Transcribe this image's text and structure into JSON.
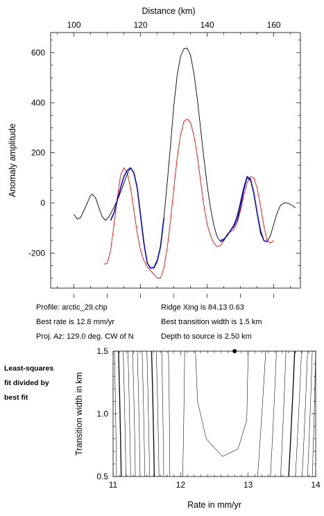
{
  "info": {
    "profile": "Profile: arctic_29.chp",
    "best_rate": "Best rate is 12.8 mm/yr",
    "proj_az": "Proj. Az: 129.0 deg. CW of N",
    "ridge_xing": "Ridge Xing is 84.13 0.63",
    "best_width": "Best transition width is 1.5 km",
    "depth": "Depth to source is    2.50 km"
  },
  "side_note": [
    "Least-squares",
    "fit divided by",
    "best fit"
  ],
  "chart_data": [
    {
      "type": "line",
      "title": "",
      "xlabel": "Distance (km)",
      "ylabel": "Anomaly amplitude",
      "xlim": [
        93,
        168
      ],
      "ylim": [
        -340,
        680
      ],
      "xticks": [
        100,
        120,
        140,
        160
      ],
      "yticks": [
        -200,
        0,
        200,
        400,
        600
      ],
      "grid": false,
      "colors": {
        "observed": "#000000",
        "fit": "#0000dd",
        "model": "#ff0000"
      },
      "series": [
        {
          "name": "",
          "color": "#000000",
          "points": [
            [
              100,
              -45
            ],
            [
              101,
              -65
            ],
            [
              102,
              -58
            ],
            [
              103,
              -30
            ],
            [
              104,
              0
            ],
            [
              105,
              30
            ],
            [
              105.5,
              35
            ],
            [
              106.5,
              20
            ],
            [
              107.5,
              -20
            ],
            [
              108.5,
              -55
            ],
            [
              109.5,
              -70
            ],
            [
              110.5,
              -55
            ],
            [
              111.5,
              -30
            ],
            [
              113,
              10
            ],
            [
              114.5,
              60
            ],
            [
              116,
              115
            ],
            [
              117,
              140
            ],
            [
              118,
              120
            ],
            [
              119,
              60
            ],
            [
              120,
              -50
            ],
            [
              121,
              -160
            ],
            [
              122,
              -240
            ],
            [
              123,
              -260
            ],
            [
              124,
              -260
            ],
            [
              125,
              -235
            ],
            [
              126,
              -170
            ],
            [
              127,
              -60
            ],
            [
              128,
              80
            ],
            [
              129,
              230
            ],
            [
              130,
              390
            ],
            [
              131,
              510
            ],
            [
              132,
              585
            ],
            [
              133,
              615
            ],
            [
              134,
              618
            ],
            [
              135,
              590
            ],
            [
              136,
              520
            ],
            [
              137,
              420
            ],
            [
              138,
              300
            ],
            [
              139,
              180
            ],
            [
              140,
              70
            ],
            [
              141,
              -20
            ],
            [
              142,
              -90
            ],
            [
              143,
              -135
            ],
            [
              144,
              -155
            ],
            [
              145,
              -150
            ],
            [
              146,
              -130
            ],
            [
              147,
              -110
            ],
            [
              148,
              -95
            ],
            [
              149,
              -70
            ],
            [
              150,
              -20
            ],
            [
              151,
              50
            ],
            [
              152,
              100
            ],
            [
              153,
              90
            ],
            [
              154,
              40
            ],
            [
              155,
              -40
            ],
            [
              156,
              -120
            ],
            [
              157,
              -150
            ],
            [
              158,
              -155
            ],
            [
              159,
              -130
            ],
            [
              160,
              -85
            ],
            [
              161,
              -40
            ],
            [
              162,
              -10
            ],
            [
              163,
              0
            ],
            [
              164,
              0
            ],
            [
              165,
              -5
            ],
            [
              166,
              -15
            ],
            [
              166.5,
              -20
            ]
          ]
        },
        {
          "name": "",
          "color": "#0000dd",
          "points": [
            [
              111,
              -70
            ],
            [
              112,
              -40
            ],
            [
              113,
              10
            ],
            [
              114,
              60
            ],
            [
              115,
              105
            ],
            [
              116,
              130
            ],
            [
              117,
              140
            ],
            [
              118,
              120
            ],
            [
              119,
              60
            ],
            [
              120,
              -50
            ],
            [
              121,
              -160
            ],
            [
              122,
              -240
            ],
            [
              123,
              -260
            ],
            [
              124,
              -258
            ],
            [
              125,
              -230
            ],
            [
              126,
              -175
            ],
            [
              127,
              -60
            ],
            [
              144,
              -150
            ],
            [
              145,
              -145
            ],
            [
              146,
              -130
            ],
            [
              147,
              -110
            ],
            [
              148,
              -90
            ],
            [
              149,
              -55
            ],
            [
              150,
              0
            ],
            [
              151,
              60
            ],
            [
              152,
              105
            ],
            [
              153,
              95
            ],
            [
              154,
              40
            ],
            [
              155,
              -40
            ],
            [
              156,
              -110
            ],
            [
              157,
              -150
            ],
            [
              158,
              -155
            ]
          ]
        },
        {
          "name": "",
          "color": "#ff0000",
          "points": [
            [
              109,
              -245
            ],
            [
              110,
              -240
            ],
            [
              111,
              -190
            ],
            [
              112,
              -90
            ],
            [
              113,
              20
            ],
            [
              114,
              110
            ],
            [
              115,
              140
            ],
            [
              116,
              120
            ],
            [
              117,
              60
            ],
            [
              118,
              -30
            ],
            [
              119,
              -120
            ],
            [
              120,
              -190
            ],
            [
              121,
              -230
            ],
            [
              122,
              -255
            ],
            [
              123,
              -270
            ],
            [
              124,
              -285
            ],
            [
              125,
              -300
            ],
            [
              126,
              -300
            ],
            [
              127,
              -260
            ],
            [
              128,
              -180
            ],
            [
              129,
              -70
            ],
            [
              130,
              60
            ],
            [
              131,
              180
            ],
            [
              132,
              270
            ],
            [
              133,
              325
            ],
            [
              134,
              335
            ],
            [
              135,
              320
            ],
            [
              136,
              270
            ],
            [
              137,
              190
            ],
            [
              138,
              90
            ],
            [
              139,
              -10
            ],
            [
              140,
              -85
            ],
            [
              141,
              -130
            ],
            [
              142,
              -160
            ],
            [
              143,
              -175
            ],
            [
              144,
              -170
            ],
            [
              145,
              -150
            ],
            [
              146,
              -125
            ],
            [
              147,
              -115
            ],
            [
              148,
              -105
            ],
            [
              149,
              -80
            ],
            [
              150,
              -30
            ],
            [
              151,
              30
            ],
            [
              152,
              80
            ],
            [
              153,
              105
            ],
            [
              154,
              100
            ],
            [
              155,
              60
            ],
            [
              156,
              -10
            ],
            [
              157,
              -90
            ],
            [
              158,
              -150
            ],
            [
              159,
              -160
            ],
            [
              160,
              -150
            ]
          ]
        }
      ]
    },
    {
      "type": "contour",
      "title": "",
      "xlabel": "Rate in mm/yr",
      "ylabel": "Transition width in km",
      "xlim": [
        11,
        14
      ],
      "ylim": [
        0.5,
        1.5
      ],
      "xticks": [
        11,
        12,
        13,
        14
      ],
      "yticks": [
        0.5,
        1.0,
        1.5
      ],
      "best_fit_point": [
        12.8,
        1.5
      ],
      "contour_lines": [
        {
          "bottom": 11.05,
          "top": 11.02,
          "bold": false
        },
        {
          "bottom": 11.12,
          "top": 11.08,
          "bold": true
        },
        {
          "bottom": 11.19,
          "top": 11.15,
          "bold": false
        },
        {
          "bottom": 11.26,
          "top": 11.22,
          "bold": false
        },
        {
          "bottom": 11.33,
          "top": 11.29,
          "bold": false
        },
        {
          "bottom": 11.4,
          "top": 11.36,
          "bold": false
        },
        {
          "bottom": 11.47,
          "top": 11.43,
          "bold": false
        },
        {
          "bottom": 11.54,
          "top": 11.5,
          "bold": false
        },
        {
          "bottom": 11.61,
          "top": 11.57,
          "bold": true
        },
        {
          "bottom": 11.68,
          "top": 11.64,
          "bold": false
        },
        {
          "bottom": 11.75,
          "top": 11.72,
          "bold": false
        },
        {
          "bottom": 11.84,
          "top": 11.82,
          "bold": false
        },
        {
          "bottom": 12.03,
          "top": 12.06,
          "bold": false
        },
        {
          "bottom": 13.14,
          "top": 13.26,
          "bold": false
        },
        {
          "bottom": 13.33,
          "top": 13.42,
          "bold": false
        },
        {
          "bottom": 13.48,
          "top": 13.56,
          "bold": false
        },
        {
          "bottom": 13.6,
          "top": 13.69,
          "bold": true
        },
        {
          "bottom": 13.7,
          "top": 13.79,
          "bold": false
        },
        {
          "bottom": 13.8,
          "top": 13.88,
          "bold": false
        },
        {
          "bottom": 13.88,
          "top": 13.95,
          "bold": false
        },
        {
          "bottom": 13.95,
          "top": 14.0,
          "bold": false
        }
      ],
      "closed_contour": [
        [
          12.22,
          1.5
        ],
        [
          12.25,
          1.1
        ],
        [
          12.38,
          0.8
        ],
        [
          12.62,
          0.66
        ],
        [
          12.85,
          0.72
        ],
        [
          12.98,
          0.95
        ],
        [
          13.0,
          1.5
        ]
      ]
    }
  ]
}
